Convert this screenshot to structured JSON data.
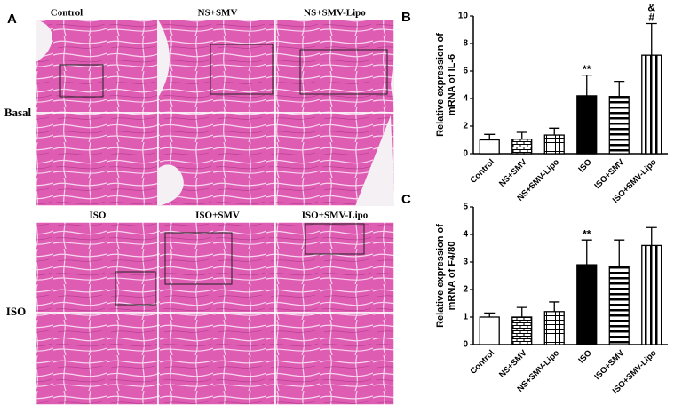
{
  "panel_a": {
    "label": "A",
    "top_columns": [
      "Control",
      "NS+SMV",
      "NS+SMV-Lipo"
    ],
    "bottom_columns": [
      "ISO",
      "ISO+SMV",
      "ISO+SMV-Lipo"
    ],
    "rows": [
      "Basal",
      "ISO"
    ]
  },
  "chart_data": [
    {
      "type": "bar",
      "panel": "B",
      "ylabel": [
        "Relative expression of",
        "mRNA of IL-6"
      ],
      "categories": [
        "Control",
        "NS+SMV",
        "NS+SMV-Lipo",
        "ISO",
        "ISO+SMV",
        "ISO+SMV-Lipo"
      ],
      "values": [
        1.0,
        1.05,
        1.35,
        4.2,
        4.15,
        7.15
      ],
      "errors": [
        0.4,
        0.5,
        0.5,
        1.5,
        1.1,
        2.3
      ],
      "fills": [
        "white",
        "brick",
        "grid",
        "black",
        "hstripe",
        "vstripe"
      ],
      "ylim": [
        0,
        10
      ],
      "yticks": [
        0,
        2,
        4,
        6,
        8,
        10
      ],
      "annotations": [
        {
          "category": "ISO",
          "text": "**"
        },
        {
          "category": "ISO+SMV-Lipo",
          "text": "#"
        },
        {
          "category": "ISO+SMV-Lipo",
          "text": "&"
        }
      ]
    },
    {
      "type": "bar",
      "panel": "C",
      "ylabel": [
        "Relative expression of",
        "mRNA of F4/80"
      ],
      "categories": [
        "Control",
        "NS+SMV",
        "NS+SMV-Lipo",
        "ISO",
        "ISO+SMV",
        "ISO+SMV-Lipo"
      ],
      "values": [
        1.0,
        1.0,
        1.2,
        2.9,
        2.85,
        3.6
      ],
      "errors": [
        0.15,
        0.35,
        0.35,
        0.9,
        0.95,
        0.65
      ],
      "fills": [
        "white",
        "brick",
        "grid",
        "black",
        "hstripe",
        "vstripe"
      ],
      "ylim": [
        0,
        5
      ],
      "yticks": [
        0,
        1,
        2,
        3,
        4,
        5
      ],
      "annotations": [
        {
          "category": "ISO",
          "text": "**"
        }
      ]
    }
  ]
}
